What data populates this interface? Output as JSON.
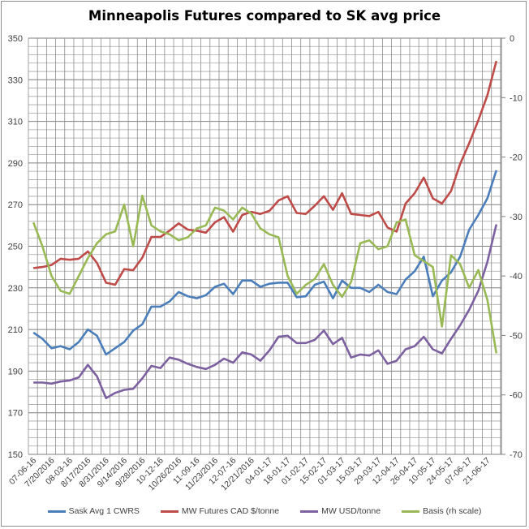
{
  "chart_data": {
    "type": "line",
    "title": "Minneapolis Futures compared to SK avg price",
    "xlabel": "",
    "ylabel": "",
    "ylim": [
      150,
      350
    ],
    "y_ticks": [
      "350",
      "330",
      "310",
      "290",
      "270",
      "250",
      "230",
      "210",
      "190",
      "170",
      "150"
    ],
    "y2lim": [
      -70,
      0
    ],
    "y2_ticks": [
      "0",
      "-10",
      "-20",
      "-30",
      "-40",
      "-50",
      "-60",
      "-70"
    ],
    "x_tick_labels": [
      "07-06-16",
      "7/20/2016",
      "08-03-16",
      "8/17/2016",
      "8/31/2016",
      "9/14/2016",
      "9/28/2016",
      "10-12-16",
      "10/26/2016",
      "11-09-16",
      "11/23/2016",
      "12-07-16",
      "12/21/2016",
      "04-01-17",
      "18-01-17",
      "01-02-17",
      "15-02-17",
      "01-03-17",
      "15-03-17",
      "29-03-17",
      "12-04-17",
      "26-04-17",
      "10-05-17",
      "24-05-17",
      "07-06-17",
      "21-06-17"
    ],
    "grid": true,
    "legend_position": "bottom",
    "series": [
      {
        "name": "Sask Avg 1 CWRS",
        "axis": "left",
        "color": "#4a7ebb",
        "values": [
          208.5,
          205.5,
          201,
          202,
          200.5,
          204,
          210,
          207,
          198,
          201,
          204,
          209.5,
          212.5,
          221,
          221,
          223.5,
          228,
          226,
          225,
          226.5,
          230.5,
          232,
          227,
          233.5,
          233.5,
          230.5,
          232,
          232.5,
          232.5,
          225.5,
          226,
          231.5,
          233,
          225,
          233.5,
          230,
          230,
          228,
          231.5,
          228,
          227,
          234,
          238,
          245,
          226,
          233.5,
          237.5,
          245,
          258,
          265,
          273,
          286.5
        ]
      },
      {
        "name": "MW Futures CAD $/tonne",
        "axis": "left",
        "color": "#be4b48",
        "values": [
          239.5,
          240,
          241,
          244,
          243.5,
          244,
          247.5,
          242,
          232.5,
          231.5,
          239,
          238.5,
          244.5,
          254.5,
          254.5,
          257.5,
          261,
          258,
          257.5,
          256.5,
          261.5,
          264,
          257,
          265,
          266.5,
          265.5,
          267,
          272,
          274,
          266,
          265.5,
          269.5,
          274,
          267.5,
          275.5,
          265.5,
          265,
          264.5,
          266.5,
          259,
          257,
          270.5,
          275.5,
          283,
          273,
          270.5,
          276.5,
          289.5,
          299.5,
          310.5,
          322.5,
          339
        ]
      },
      {
        "name": "MW USD/tonne",
        "axis": "left",
        "color": "#7d60a0",
        "values": [
          184.5,
          184.5,
          184,
          185,
          185.5,
          187,
          193,
          187.5,
          177,
          179.5,
          181,
          181.5,
          186.5,
          192.5,
          191.5,
          196.5,
          195.5,
          193.5,
          192,
          191,
          193,
          196,
          194,
          199,
          198,
          195,
          200,
          206.5,
          207,
          203.5,
          203.5,
          205,
          209.5,
          203,
          206,
          196.5,
          198,
          197.5,
          200,
          193.5,
          195,
          200.5,
          202,
          206.5,
          200.5,
          198.5,
          205.5,
          212,
          219.5,
          228.5,
          242.5,
          260.5
        ]
      },
      {
        "name": "Basis (rh scale)",
        "axis": "right",
        "color": "#98b954",
        "values": [
          -31,
          -35,
          -40,
          -42.5,
          -43,
          -40,
          -37,
          -34.5,
          -33,
          -32.5,
          -28,
          -35,
          -26.5,
          -31.5,
          -32.5,
          -33,
          -34,
          -33.5,
          -32,
          -31.5,
          -28.5,
          -29,
          -30.5,
          -28.5,
          -29.5,
          -32,
          -33,
          -33.5,
          -40,
          -43,
          -41.5,
          -40.5,
          -38,
          -41.5,
          -43.5,
          -41,
          -34.5,
          -34,
          -35.5,
          -35,
          -31,
          -30.5,
          -36.5,
          -37.5,
          -38.5,
          -48.5,
          -36.5,
          -38,
          -42,
          -39,
          -44,
          -53
        ]
      }
    ]
  }
}
